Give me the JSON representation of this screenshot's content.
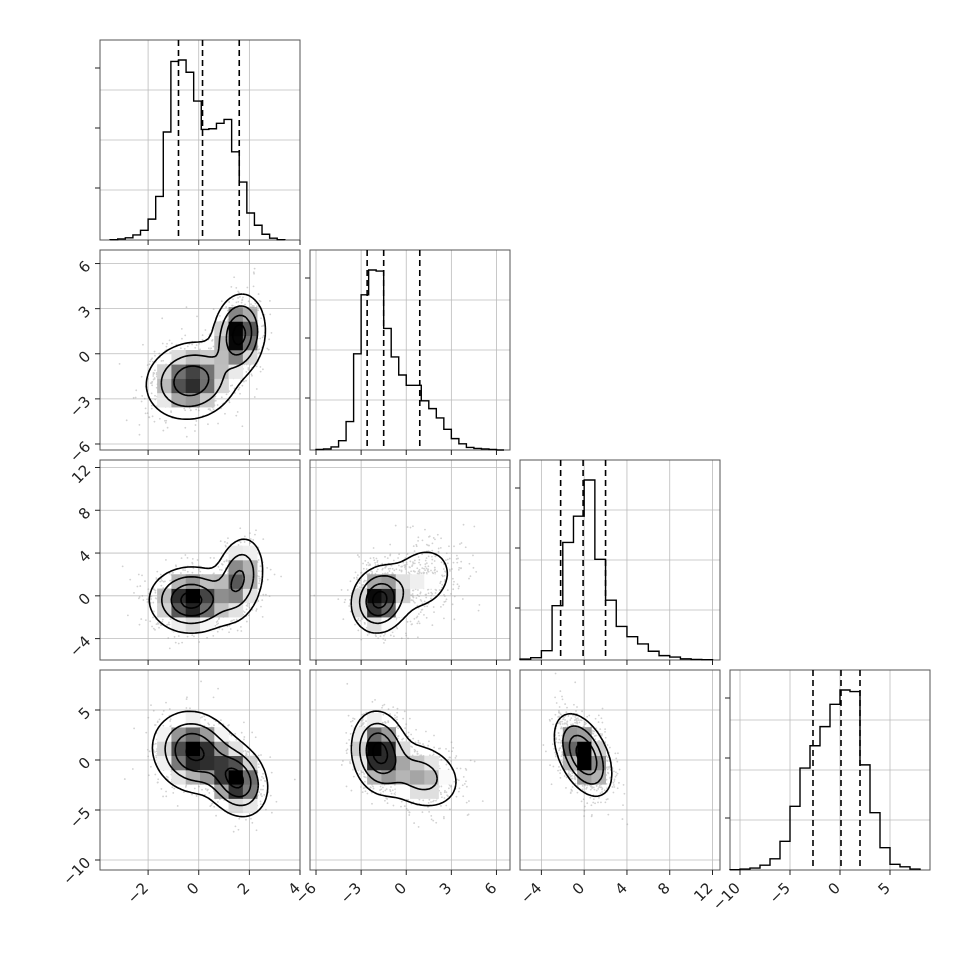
{
  "chart_data": {
    "type": "corner",
    "parameters": 4,
    "grid": true,
    "colors": {
      "frame": "#555555",
      "grid": "#bbbbbb",
      "ink": "#000000",
      "samples": "#9a9a9a"
    },
    "ranges": [
      [
        -3.9,
        4.0
      ],
      [
        -6.4,
        6.9
      ],
      [
        -6.0,
        12.7
      ],
      [
        -11.0,
        9.0
      ]
    ],
    "tick_values": [
      [
        -2,
        0,
        2,
        4
      ],
      [
        -6,
        -3,
        0,
        3,
        6
      ],
      [
        -4,
        0,
        4,
        8,
        12
      ],
      [
        -10,
        -5,
        0,
        5
      ]
    ],
    "tick_labels": [
      [
        "−2",
        "0",
        "2",
        "4"
      ],
      [
        "−6",
        "−3",
        "0",
        "3",
        "6"
      ],
      [
        "−4",
        "0",
        "4",
        "8",
        "12"
      ],
      [
        "−10",
        "−5",
        "0",
        "5"
      ]
    ],
    "marginals": [
      {
        "bins": [
          -3.5,
          -3.2,
          -2.9,
          -2.6,
          -2.3,
          -2.0,
          -1.7,
          -1.4,
          -1.1,
          -0.8,
          -0.5,
          -0.2,
          0.1,
          0.4,
          0.7,
          1.0,
          1.3,
          1.6,
          1.9,
          2.2,
          2.5,
          2.8,
          3.1,
          3.4
        ],
        "counts": [
          1,
          3,
          6,
          14,
          27,
          58,
          121,
          300,
          496,
          500,
          466,
          386,
          307,
          309,
          324,
          335,
          245,
          161,
          75,
          41,
          16,
          5,
          1
        ],
        "quantiles": [
          -0.8,
          0.15,
          1.6
        ]
      },
      {
        "bins": [
          -6.0,
          -5.5,
          -5.0,
          -4.5,
          -4.0,
          -3.5,
          -3.0,
          -2.5,
          -2.0,
          -1.5,
          -1.0,
          -0.5,
          0.0,
          0.5,
          1.0,
          1.5,
          2.0,
          2.5,
          3.0,
          3.5,
          4.0,
          4.5,
          5.0,
          5.5,
          6.0,
          6.5
        ],
        "counts": [
          1,
          2,
          6,
          18,
          55,
          186,
          300,
          348,
          346,
          235,
          180,
          145,
          125,
          125,
          95,
          80,
          62,
          40,
          22,
          12,
          5,
          3,
          2,
          1,
          0
        ],
        "quantiles": [
          -2.6,
          -1.5,
          0.9
        ]
      },
      {
        "bins": [
          -6.0,
          -5.0,
          -4.0,
          -3.0,
          -2.0,
          -1.0,
          0.0,
          1.0,
          2.0,
          3.0,
          4.0,
          5.0,
          6.0,
          7.0,
          8.0,
          9.0,
          10.0,
          11.0,
          12.0
        ],
        "counts": [
          3,
          8,
          32,
          186,
          403,
          493,
          617,
          345,
          205,
          115,
          80,
          55,
          30,
          15,
          10,
          4,
          2,
          1
        ],
        "quantiles": [
          -2.2,
          -0.1,
          2.0
        ]
      },
      {
        "bins": [
          -11.0,
          -10.0,
          -9.0,
          -8.0,
          -7.0,
          -6.0,
          -5.0,
          -4.0,
          -3.0,
          -2.0,
          -1.0,
          0.0,
          1.0,
          2.0,
          3.0,
          4.0,
          5.0,
          6.0,
          7.0,
          8.0
        ],
        "counts": [
          1,
          3,
          6,
          15,
          35,
          90,
          200,
          320,
          390,
          450,
          520,
          565,
          560,
          330,
          180,
          70,
          18,
          10,
          3
        ],
        "quantiles": [
          -2.7,
          0.1,
          2.0
        ]
      }
    ],
    "pairs": [
      {
        "row": 1,
        "col": 0,
        "modes": [
          {
            "x": -0.3,
            "y": -1.8,
            "sx": 0.9,
            "sy": 1.3,
            "w": 0.6,
            "rho": 0.1
          },
          {
            "x": 1.6,
            "y": 1.3,
            "sx": 0.5,
            "sy": 1.3,
            "w": 0.4,
            "rho": 0.1
          }
        ]
      },
      {
        "row": 2,
        "col": 0,
        "modes": [
          {
            "x": -0.3,
            "y": -0.4,
            "sx": 0.8,
            "sy": 1.5,
            "w": 0.65,
            "rho": 0.0
          },
          {
            "x": 1.6,
            "y": 1.6,
            "sx": 0.5,
            "sy": 2.0,
            "w": 0.35,
            "rho": 0.2
          }
        ]
      },
      {
        "row": 2,
        "col": 1,
        "modes": [
          {
            "x": -1.8,
            "y": -0.4,
            "sx": 0.9,
            "sy": 1.5,
            "w": 0.65,
            "rho": 0.1
          },
          {
            "x": 1.0,
            "y": 1.6,
            "sx": 1.4,
            "sy": 2.0,
            "w": 0.35,
            "rho": 0.2
          }
        ]
      },
      {
        "row": 3,
        "col": 0,
        "modes": [
          {
            "x": -0.2,
            "y": 0.8,
            "sx": 0.8,
            "sy": 2.0,
            "w": 0.6,
            "rho": -0.1
          },
          {
            "x": 1.5,
            "y": -2.0,
            "sx": 0.6,
            "sy": 1.8,
            "w": 0.4,
            "rho": -0.2
          }
        ]
      },
      {
        "row": 3,
        "col": 1,
        "modes": [
          {
            "x": -1.8,
            "y": 0.8,
            "sx": 0.9,
            "sy": 2.0,
            "w": 0.6,
            "rho": -0.1
          },
          {
            "x": 1.0,
            "y": -1.6,
            "sx": 1.4,
            "sy": 1.8,
            "w": 0.4,
            "rho": -0.2
          }
        ]
      },
      {
        "row": 3,
        "col": 2,
        "modes": [
          {
            "x": -0.1,
            "y": 0.5,
            "sx": 1.3,
            "sy": 2.0,
            "w": 1.0,
            "rho": -0.45
          }
        ]
      }
    ]
  }
}
